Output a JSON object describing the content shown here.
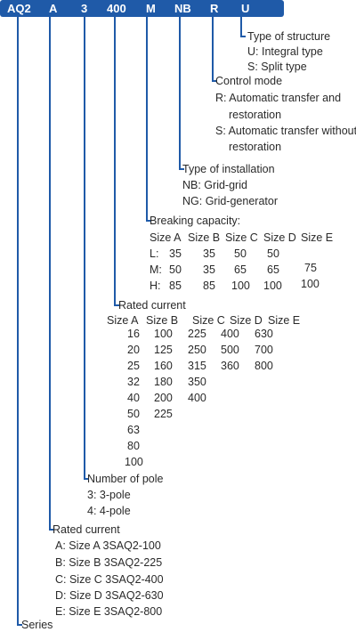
{
  "codes": [
    "AQ2",
    "A",
    "3",
    "400",
    "M",
    "NB",
    "R",
    "U"
  ],
  "structure": {
    "title": "Type of structure",
    "items": [
      "U: Integral type",
      "S: Split type"
    ]
  },
  "control": {
    "title": "Control mode",
    "items": [
      "R: Automatic transfer and",
      "restoration",
      "S: Automatic transfer without",
      "restoration"
    ]
  },
  "installation": {
    "title": "Type of installation",
    "items": [
      "NB: Grid-grid",
      "NG: Grid-generator"
    ]
  },
  "breaking": {
    "title": "Breaking capacity:",
    "headers": [
      "Size A",
      "Size B",
      "Size C",
      "Size D",
      "Size E"
    ],
    "row_labels": [
      "L:",
      "M:",
      "H:"
    ],
    "rows": [
      [
        "35",
        "35",
        "50",
        "50"
      ],
      [
        "50",
        "35",
        "65",
        "65"
      ],
      [
        "85",
        "85",
        "100",
        "100"
      ]
    ],
    "size_e": [
      "75",
      "100"
    ]
  },
  "rated_current_table": {
    "title": "Rated current",
    "headers": [
      "Size A",
      "Size B",
      "Size C",
      "Size D",
      "Size E"
    ],
    "columns": [
      [
        "16",
        "20",
        "25",
        "32",
        "40",
        "50",
        "63",
        "80",
        "100"
      ],
      [
        "100",
        "125",
        "160",
        "180",
        "200",
        "225"
      ],
      [
        "225",
        "250",
        "315",
        "350",
        "400"
      ],
      [
        "400",
        "500",
        "360"
      ],
      [
        "630",
        "700",
        "800"
      ]
    ]
  },
  "poles": {
    "title": "Number of pole",
    "items": [
      "3: 3-pole",
      "4: 4-pole"
    ]
  },
  "rated_current_frames": {
    "title": "Rated current",
    "items": [
      "A: Size A 3SAQ2-100",
      "B: Size B 3SAQ2-225",
      "C: Size C 3SAQ2-400",
      "D: Size D 3SAQ2-630",
      "E: Size E 3SAQ2-800"
    ]
  },
  "series": {
    "title": "Series"
  },
  "colors": {
    "accent": "#1f5aa8",
    "text": "#2a2a2a"
  }
}
